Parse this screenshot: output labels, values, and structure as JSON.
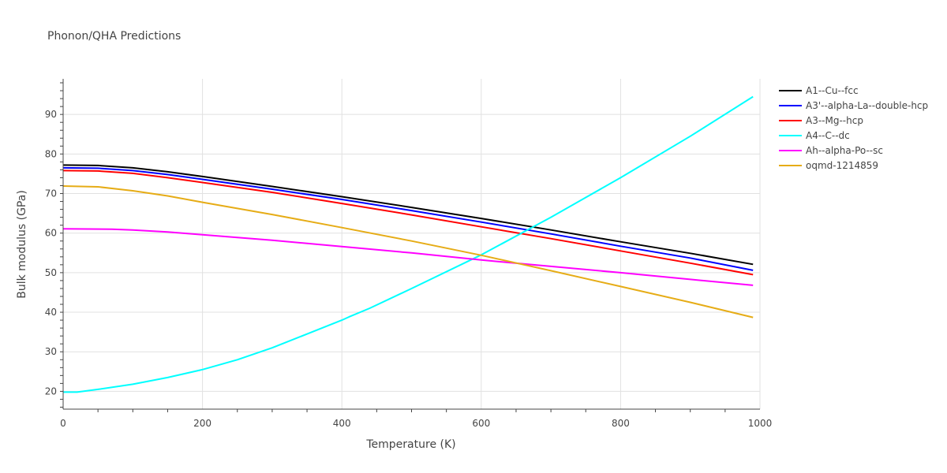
{
  "chart_data": {
    "type": "line",
    "title": "Phonon/QHA Predictions",
    "xlabel": "Temperature (K)",
    "ylabel": "Bulk modulus (GPa)",
    "xlim": [
      0,
      1000
    ],
    "ylim": [
      15.5,
      99
    ],
    "xticks": [
      0,
      200,
      400,
      600,
      800,
      1000
    ],
    "yticks": [
      20,
      30,
      40,
      50,
      60,
      70,
      80,
      90
    ],
    "grid": true,
    "legend_position": "top-right",
    "series": [
      {
        "name": "A1--Cu--fcc",
        "color": "#000000",
        "x": [
          0,
          50,
          100,
          150,
          200,
          300,
          400,
          500,
          600,
          700,
          800,
          900,
          990
        ],
        "y": [
          77.2,
          77.1,
          76.5,
          75.5,
          74.3,
          71.8,
          69.2,
          66.5,
          63.7,
          60.8,
          57.8,
          54.9,
          52.1
        ]
      },
      {
        "name": "A3'--alpha-La--double-hcp",
        "color": "#0000ff",
        "x": [
          0,
          50,
          100,
          150,
          200,
          300,
          400,
          500,
          600,
          700,
          800,
          900,
          990
        ],
        "y": [
          76.5,
          76.4,
          75.8,
          74.8,
          73.6,
          71.1,
          68.5,
          65.7,
          62.8,
          59.8,
          56.7,
          53.7,
          50.6
        ]
      },
      {
        "name": "A3--Mg--hcp",
        "color": "#ff0000",
        "x": [
          0,
          50,
          100,
          150,
          200,
          300,
          400,
          500,
          600,
          700,
          800,
          900,
          990
        ],
        "y": [
          75.8,
          75.7,
          75.1,
          74.0,
          72.8,
          70.3,
          67.5,
          64.6,
          61.6,
          58.6,
          55.5,
          52.4,
          49.5
        ]
      },
      {
        "name": "A4--C--dc",
        "color": "#00ffff",
        "x": [
          0,
          20,
          50,
          100,
          150,
          200,
          250,
          300,
          350,
          400,
          410,
          440,
          500,
          600,
          700,
          800,
          900,
          990
        ],
        "y": [
          19.8,
          19.8,
          20.5,
          21.8,
          23.5,
          25.5,
          28.0,
          31.0,
          34.5,
          38.0,
          38.8,
          41.0,
          46.0,
          54.5,
          64.0,
          74.0,
          84.5,
          94.5
        ]
      },
      {
        "name": "Ah--alpha-Po--sc",
        "color": "#ff00ff",
        "x": [
          0,
          70,
          100,
          150,
          200,
          300,
          400,
          500,
          600,
          700,
          800,
          900,
          990
        ],
        "y": [
          61.1,
          61.0,
          60.8,
          60.3,
          59.6,
          58.2,
          56.6,
          55.0,
          53.2,
          51.6,
          50.0,
          48.3,
          46.8
        ]
      },
      {
        "name": "oqmd-1214859",
        "color": "#e6ac16",
        "x": [
          0,
          50,
          100,
          150,
          200,
          300,
          400,
          500,
          600,
          700,
          800,
          900,
          990
        ],
        "y": [
          71.9,
          71.7,
          70.7,
          69.4,
          67.8,
          64.7,
          61.4,
          58.0,
          54.4,
          50.5,
          46.5,
          42.5,
          38.7
        ]
      }
    ]
  }
}
